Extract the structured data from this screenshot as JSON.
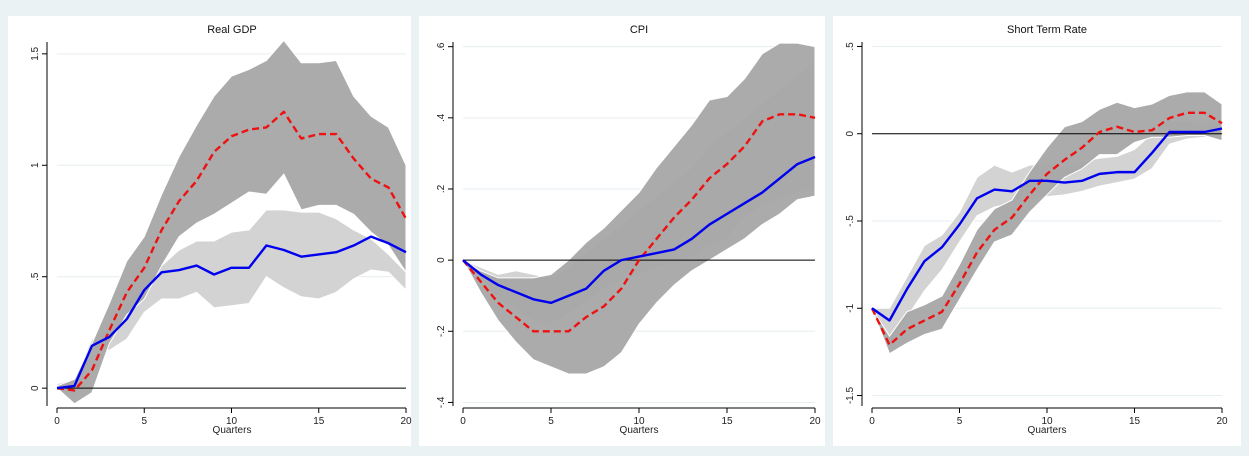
{
  "colors": {
    "background": "#eaf2f3",
    "panel": "#ffffff",
    "band_dark": "#a6a6a6",
    "band_light": "#d3d3d3",
    "baseline_line": "#0000ee",
    "alt_line": "#ee1111",
    "zero_line": "#000000"
  },
  "chart_data": [
    {
      "type": "area",
      "title": "Real GDP",
      "xlabel": "Quarters",
      "ylabel": "",
      "xlim": [
        0,
        20
      ],
      "ylim": [
        -0.08,
        1.58
      ],
      "xticks": [
        0,
        5,
        10,
        15,
        20
      ],
      "xtick_labels": [
        "0",
        "5",
        "10",
        "15",
        "20"
      ],
      "yticks": [
        0,
        0.5,
        1,
        1.5
      ],
      "ytick_labels": [
        "0",
        ".5",
        "1",
        "1.5"
      ],
      "grid": true,
      "x": [
        0,
        1,
        2,
        3,
        4,
        5,
        6,
        7,
        8,
        9,
        10,
        11,
        12,
        13,
        14,
        15,
        16,
        17,
        18,
        19,
        20
      ],
      "bands": [
        {
          "style": "light",
          "lower": [
            0.01,
            -0.04,
            0.18,
            0.17,
            0.22,
            0.34,
            0.4,
            0.4,
            0.43,
            0.36,
            0.37,
            0.38,
            0.5,
            0.45,
            0.41,
            0.4,
            0.43,
            0.49,
            0.53,
            0.52,
            0.44
          ],
          "upper": [
            0.02,
            0.04,
            0.22,
            0.27,
            0.38,
            0.45,
            0.55,
            0.62,
            0.66,
            0.66,
            0.7,
            0.71,
            0.8,
            0.8,
            0.79,
            0.79,
            0.76,
            0.71,
            0.67,
            0.6,
            0.52
          ]
        },
        {
          "style": "dark",
          "lower": [
            0.0,
            -0.07,
            -0.02,
            0.2,
            0.33,
            0.4,
            0.55,
            0.68,
            0.74,
            0.78,
            0.83,
            0.88,
            0.87,
            0.96,
            0.8,
            0.82,
            0.82,
            0.78,
            0.7,
            0.64,
            0.52
          ],
          "upper": [
            0.01,
            0.04,
            0.2,
            0.38,
            0.57,
            0.68,
            0.87,
            1.04,
            1.18,
            1.31,
            1.4,
            1.43,
            1.47,
            1.56,
            1.46,
            1.46,
            1.47,
            1.31,
            1.22,
            1.17,
            1.0
          ]
        }
      ],
      "series": [
        {
          "style": "dashed",
          "color": "#ee1111",
          "values": [
            0.0,
            -0.01,
            0.08,
            0.26,
            0.43,
            0.54,
            0.71,
            0.84,
            0.93,
            1.06,
            1.13,
            1.16,
            1.17,
            1.24,
            1.12,
            1.14,
            1.14,
            1.03,
            0.94,
            0.9,
            0.76
          ]
        },
        {
          "style": "solid",
          "color": "#0000ee",
          "values": [
            0.0,
            0.01,
            0.19,
            0.23,
            0.31,
            0.44,
            0.52,
            0.53,
            0.55,
            0.51,
            0.54,
            0.54,
            0.64,
            0.62,
            0.59,
            0.6,
            0.61,
            0.64,
            0.68,
            0.65,
            0.61
          ]
        }
      ]
    },
    {
      "type": "area",
      "title": "CPI",
      "xlabel": "Quarters",
      "ylabel": "",
      "xlim": [
        0,
        20
      ],
      "ylim": [
        -0.41,
        0.63
      ],
      "xticks": [
        0,
        5,
        10,
        15,
        20
      ],
      "xtick_labels": [
        "0",
        "5",
        "10",
        "15",
        "20"
      ],
      "yticks": [
        -0.4,
        -0.2,
        0,
        0.2,
        0.4,
        0.6
      ],
      "ytick_labels": [
        "-.4",
        "-.2",
        "0",
        ".2",
        ".4",
        ".6"
      ],
      "grid": true,
      "x": [
        0,
        1,
        2,
        3,
        4,
        5,
        6,
        7,
        8,
        9,
        10,
        11,
        12,
        13,
        14,
        15,
        16,
        17,
        18,
        19,
        20
      ],
      "bands": [
        {
          "style": "light",
          "lower": [
            0.0,
            -0.05,
            -0.11,
            -0.14,
            -0.17,
            -0.18,
            -0.15,
            -0.12,
            -0.08,
            -0.06,
            -0.04,
            -0.02,
            -0.01,
            0.01,
            0.04,
            0.06,
            0.12,
            0.15,
            0.17,
            0.19,
            0.2
          ],
          "upper": [
            0.0,
            -0.02,
            -0.04,
            -0.03,
            -0.04,
            -0.05,
            -0.02,
            0.02,
            0.06,
            0.1,
            0.14,
            0.18,
            0.22,
            0.26,
            0.32,
            0.36,
            0.4,
            0.44,
            0.48,
            0.52,
            0.56
          ]
        },
        {
          "style": "dark",
          "lower": [
            0.0,
            -0.09,
            -0.17,
            -0.23,
            -0.28,
            -0.3,
            -0.32,
            -0.32,
            -0.3,
            -0.26,
            -0.18,
            -0.12,
            -0.07,
            -0.03,
            0.0,
            0.03,
            0.06,
            0.1,
            0.13,
            0.17,
            0.18
          ],
          "upper": [
            0.0,
            -0.03,
            -0.05,
            -0.05,
            -0.05,
            -0.04,
            0.0,
            0.05,
            0.09,
            0.14,
            0.19,
            0.26,
            0.32,
            0.38,
            0.45,
            0.46,
            0.51,
            0.58,
            0.61,
            0.61,
            0.6
          ]
        }
      ],
      "series": [
        {
          "style": "dashed",
          "color": "#ee1111",
          "values": [
            0.0,
            -0.06,
            -0.12,
            -0.16,
            -0.2,
            -0.2,
            -0.2,
            -0.16,
            -0.13,
            -0.08,
            0.0,
            0.06,
            0.12,
            0.17,
            0.23,
            0.27,
            0.32,
            0.39,
            0.41,
            0.41,
            0.4
          ]
        },
        {
          "style": "solid",
          "color": "#0000ee",
          "values": [
            0.0,
            -0.04,
            -0.07,
            -0.09,
            -0.11,
            -0.12,
            -0.1,
            -0.08,
            -0.03,
            0.0,
            0.01,
            0.02,
            0.03,
            0.06,
            0.1,
            0.13,
            0.16,
            0.19,
            0.23,
            0.27,
            0.29
          ]
        }
      ]
    },
    {
      "type": "area",
      "title": "Short Term Rate",
      "xlabel": "Quarters",
      "ylabel": "",
      "xlim": [
        0,
        20
      ],
      "ylim": [
        -1.56,
        0.56
      ],
      "xticks": [
        0,
        5,
        10,
        15,
        20
      ],
      "xtick_labels": [
        "0",
        "5",
        "10",
        "15",
        "20"
      ],
      "yticks": [
        -1.5,
        -1,
        -0.5,
        0,
        0.5
      ],
      "ytick_labels": [
        "-1.5",
        "-1",
        "-.5",
        "0",
        ".5"
      ],
      "grid": true,
      "x": [
        0,
        1,
        2,
        3,
        4,
        5,
        6,
        7,
        8,
        9,
        10,
        11,
        12,
        13,
        14,
        15,
        16,
        17,
        18,
        19,
        20
      ],
      "bands": [
        {
          "style": "light",
          "lower": [
            -1.0,
            -1.22,
            -1.05,
            -0.9,
            -0.78,
            -0.62,
            -0.47,
            -0.42,
            -0.4,
            -0.38,
            -0.36,
            -0.35,
            -0.33,
            -0.3,
            -0.28,
            -0.26,
            -0.2,
            -0.06,
            -0.03,
            -0.02,
            -0.01
          ],
          "upper": [
            -1.0,
            -1.0,
            -0.82,
            -0.64,
            -0.58,
            -0.45,
            -0.25,
            -0.18,
            -0.22,
            -0.18,
            -0.17,
            -0.19,
            -0.16,
            -0.14,
            -0.13,
            -0.09,
            0.0,
            0.08,
            0.07,
            0.06,
            0.08
          ]
        },
        {
          "style": "dark",
          "lower": [
            -1.0,
            -1.26,
            -1.2,
            -1.15,
            -1.12,
            -0.95,
            -0.78,
            -0.62,
            -0.58,
            -0.45,
            -0.35,
            -0.25,
            -0.2,
            -0.12,
            -0.12,
            -0.05,
            -0.02,
            -0.02,
            -0.01,
            -0.01,
            -0.04
          ],
          "upper": [
            -1.0,
            -1.16,
            -1.02,
            -0.98,
            -0.93,
            -0.75,
            -0.55,
            -0.43,
            -0.38,
            -0.22,
            -0.08,
            0.04,
            0.07,
            0.14,
            0.18,
            0.15,
            0.17,
            0.22,
            0.24,
            0.24,
            0.17
          ]
        }
      ],
      "series": [
        {
          "style": "dashed",
          "color": "#ee1111",
          "values": [
            -1.0,
            -1.21,
            -1.12,
            -1.07,
            -1.02,
            -0.86,
            -0.68,
            -0.55,
            -0.48,
            -0.35,
            -0.23,
            -0.15,
            -0.08,
            0.01,
            0.04,
            0.01,
            0.02,
            0.09,
            0.12,
            0.12,
            0.06
          ]
        },
        {
          "style": "solid",
          "color": "#0000ee",
          "values": [
            -1.0,
            -1.07,
            -0.89,
            -0.73,
            -0.65,
            -0.52,
            -0.37,
            -0.32,
            -0.33,
            -0.27,
            -0.27,
            -0.28,
            -0.27,
            -0.23,
            -0.22,
            -0.22,
            -0.11,
            0.01,
            0.01,
            0.01,
            0.03
          ]
        }
      ]
    }
  ]
}
